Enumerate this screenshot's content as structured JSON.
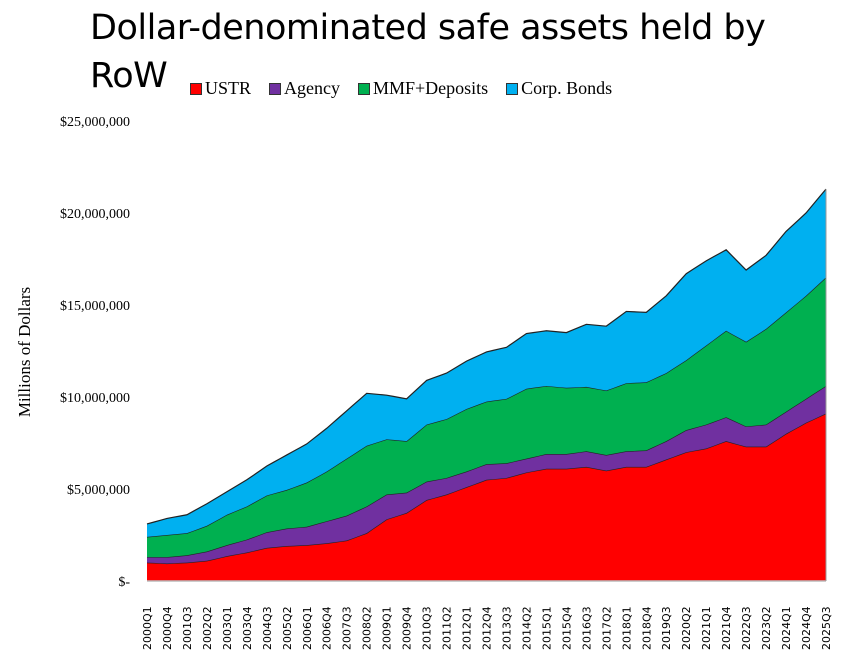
{
  "title": "Dollar-denominated safe assets held by RoW",
  "chart_data": {
    "type": "area",
    "stacked": true,
    "title": "Dollar-denominated safe assets held by RoW",
    "xlabel": "",
    "ylabel": "Millions of Dollars",
    "ylim": [
      0,
      25000000
    ],
    "yticks": [
      0,
      5000000,
      10000000,
      15000000,
      20000000,
      25000000
    ],
    "ytick_labels": [
      "$-",
      "$5,000,000",
      "$10,000,000",
      "$15,000,000",
      "$20,000,000",
      "$25,000,000"
    ],
    "grid": false,
    "legend": "top",
    "x_start": "2000Q1",
    "x_end": "2025Q3",
    "xtick_step": 3,
    "xtick_labels": [
      "2000Q1",
      "2000Q4",
      "2001Q3",
      "2002Q2",
      "2003Q1",
      "2003Q4",
      "2004Q3",
      "2005Q2",
      "2006Q1",
      "2006Q4",
      "2007Q3",
      "2008Q2",
      "2009Q1",
      "2009Q4",
      "2010Q3",
      "2011Q2",
      "2012Q1",
      "2012Q4",
      "2013Q3",
      "2014Q2",
      "2015Q1",
      "2015Q4",
      "2016Q3",
      "2017Q2",
      "2018Q1",
      "2018Q4",
      "2019Q3",
      "2020Q2",
      "2021Q1",
      "2021Q4",
      "2022Q3",
      "2023Q2",
      "2024Q1",
      "2024Q4",
      "2025Q3"
    ],
    "series": [
      {
        "name": "USTR",
        "color": "#FF0000",
        "anchors": [
          [
            0,
            1000000
          ],
          [
            3,
            950000
          ],
          [
            6,
            1000000
          ],
          [
            9,
            1100000
          ],
          [
            12,
            1350000
          ],
          [
            15,
            1550000
          ],
          [
            18,
            1800000
          ],
          [
            21,
            1900000
          ],
          [
            24,
            1950000
          ],
          [
            27,
            2050000
          ],
          [
            30,
            2200000
          ],
          [
            33,
            2600000
          ],
          [
            36,
            3350000
          ],
          [
            39,
            3700000
          ],
          [
            42,
            4400000
          ],
          [
            45,
            4700000
          ],
          [
            48,
            5100000
          ],
          [
            51,
            5500000
          ],
          [
            54,
            5600000
          ],
          [
            57,
            5900000
          ],
          [
            60,
            6100000
          ],
          [
            63,
            6100000
          ],
          [
            66,
            6200000
          ],
          [
            69,
            6000000
          ],
          [
            72,
            6200000
          ],
          [
            75,
            6200000
          ],
          [
            78,
            6600000
          ],
          [
            81,
            7000000
          ],
          [
            84,
            7200000
          ],
          [
            87,
            7600000
          ],
          [
            90,
            7300000
          ],
          [
            93,
            7300000
          ],
          [
            96,
            8000000
          ],
          [
            99,
            8600000
          ],
          [
            102,
            9100000
          ]
        ]
      },
      {
        "name": "Agency",
        "color": "#7030A0",
        "anchors": [
          [
            0,
            300000
          ],
          [
            3,
            350000
          ],
          [
            6,
            400000
          ],
          [
            9,
            500000
          ],
          [
            12,
            600000
          ],
          [
            15,
            700000
          ],
          [
            18,
            850000
          ],
          [
            21,
            950000
          ],
          [
            24,
            1000000
          ],
          [
            27,
            1200000
          ],
          [
            30,
            1350000
          ],
          [
            33,
            1450000
          ],
          [
            36,
            1350000
          ],
          [
            39,
            1100000
          ],
          [
            42,
            1000000
          ],
          [
            45,
            900000
          ],
          [
            48,
            850000
          ],
          [
            51,
            850000
          ],
          [
            54,
            800000
          ],
          [
            57,
            750000
          ],
          [
            60,
            800000
          ],
          [
            63,
            800000
          ],
          [
            66,
            850000
          ],
          [
            69,
            850000
          ],
          [
            72,
            850000
          ],
          [
            75,
            900000
          ],
          [
            78,
            1000000
          ],
          [
            81,
            1200000
          ],
          [
            84,
            1300000
          ],
          [
            87,
            1300000
          ],
          [
            90,
            1100000
          ],
          [
            93,
            1200000
          ],
          [
            96,
            1200000
          ],
          [
            99,
            1300000
          ],
          [
            102,
            1500000
          ]
        ]
      },
      {
        "name": "MMF+Deposits",
        "color": "#00B050",
        "anchors": [
          [
            0,
            1100000
          ],
          [
            3,
            1200000
          ],
          [
            6,
            1200000
          ],
          [
            9,
            1400000
          ],
          [
            12,
            1650000
          ],
          [
            15,
            1800000
          ],
          [
            18,
            2000000
          ],
          [
            21,
            2100000
          ],
          [
            24,
            2400000
          ],
          [
            27,
            2700000
          ],
          [
            30,
            3100000
          ],
          [
            33,
            3300000
          ],
          [
            36,
            3000000
          ],
          [
            39,
            2800000
          ],
          [
            42,
            3100000
          ],
          [
            45,
            3200000
          ],
          [
            48,
            3400000
          ],
          [
            51,
            3400000
          ],
          [
            54,
            3500000
          ],
          [
            57,
            3800000
          ],
          [
            60,
            3700000
          ],
          [
            63,
            3600000
          ],
          [
            66,
            3500000
          ],
          [
            69,
            3500000
          ],
          [
            72,
            3700000
          ],
          [
            75,
            3700000
          ],
          [
            78,
            3700000
          ],
          [
            81,
            3800000
          ],
          [
            84,
            4300000
          ],
          [
            87,
            4700000
          ],
          [
            90,
            4600000
          ],
          [
            93,
            5200000
          ],
          [
            96,
            5400000
          ],
          [
            99,
            5600000
          ],
          [
            102,
            5900000
          ]
        ]
      },
      {
        "name": "Corp. Bonds",
        "color": "#00B0F0",
        "anchors": [
          [
            0,
            700000
          ],
          [
            3,
            900000
          ],
          [
            6,
            1000000
          ],
          [
            9,
            1200000
          ],
          [
            12,
            1250000
          ],
          [
            15,
            1450000
          ],
          [
            18,
            1600000
          ],
          [
            21,
            1900000
          ],
          [
            24,
            2100000
          ],
          [
            27,
            2350000
          ],
          [
            30,
            2600000
          ],
          [
            33,
            2850000
          ],
          [
            36,
            2400000
          ],
          [
            39,
            2300000
          ],
          [
            42,
            2400000
          ],
          [
            45,
            2500000
          ],
          [
            48,
            2600000
          ],
          [
            51,
            2700000
          ],
          [
            54,
            2800000
          ],
          [
            57,
            3000000
          ],
          [
            60,
            3000000
          ],
          [
            63,
            3000000
          ],
          [
            66,
            3400000
          ],
          [
            69,
            3500000
          ],
          [
            72,
            3900000
          ],
          [
            75,
            3800000
          ],
          [
            78,
            4200000
          ],
          [
            81,
            4700000
          ],
          [
            84,
            4600000
          ],
          [
            87,
            4400000
          ],
          [
            90,
            3900000
          ],
          [
            93,
            4000000
          ],
          [
            96,
            4400000
          ],
          [
            99,
            4500000
          ],
          [
            102,
            4800000
          ]
        ]
      }
    ]
  }
}
